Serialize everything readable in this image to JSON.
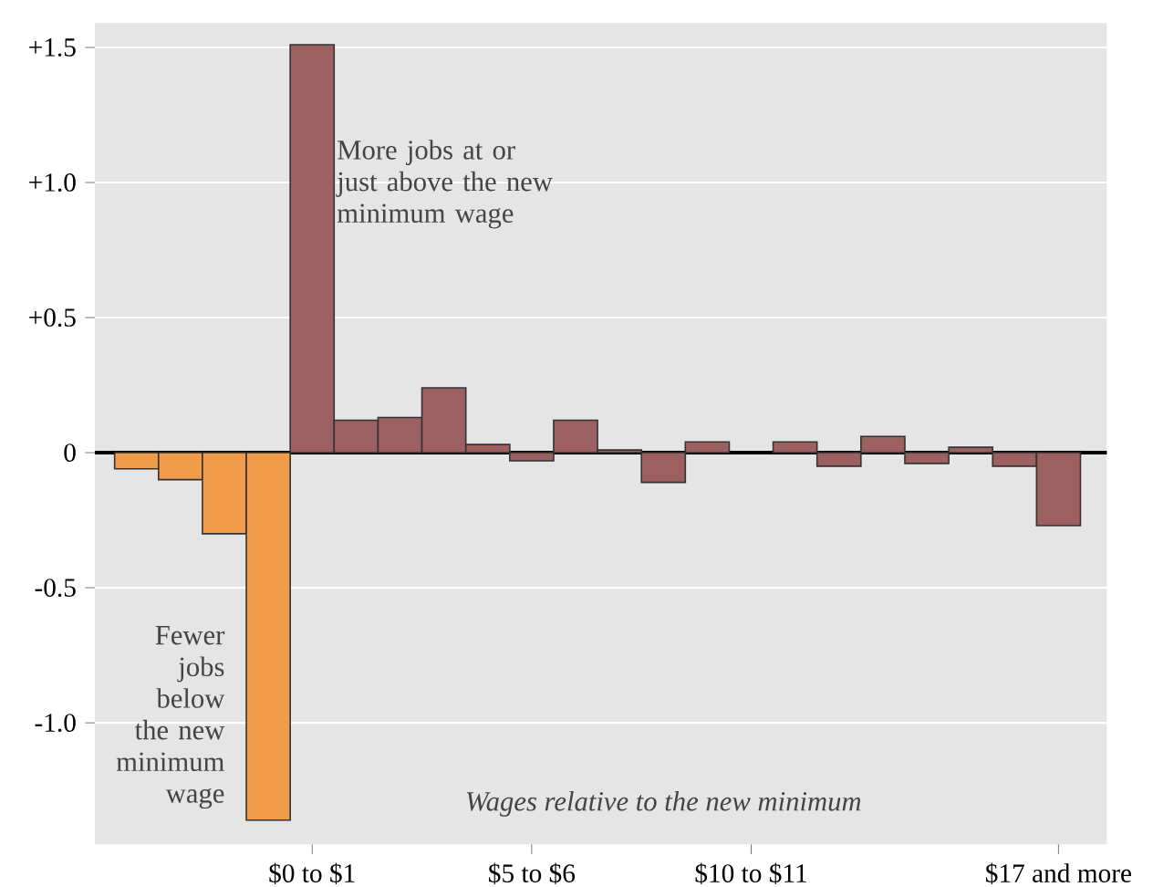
{
  "chart_data": {
    "type": "bar",
    "xlabel": "Wages relative to the new minimum",
    "categories": [
      null,
      null,
      null,
      null,
      "$0 to $1",
      null,
      null,
      null,
      null,
      "$5 to $6",
      null,
      null,
      null,
      null,
      "$10 to $11",
      null,
      null,
      null,
      null,
      null,
      null,
      "$17 and more"
    ],
    "values": [
      -0.06,
      -0.1,
      -0.3,
      -1.36,
      1.51,
      0.12,
      0.13,
      0.24,
      0.03,
      -0.03,
      0.12,
      0.01,
      -0.11,
      0.04,
      null,
      0.04,
      -0.05,
      0.06,
      -0.04,
      0.02,
      -0.05,
      -0.27
    ],
    "colors": [
      "#f09c4a",
      "#f09c4a",
      "#f09c4a",
      "#f09c4a",
      "#9c6060",
      "#9c6060",
      "#9c6060",
      "#9c6060",
      "#9c6060",
      "#9c6060",
      "#9c6060",
      "#9c6060",
      "#9c6060",
      "#9c6060",
      "#9c6060",
      "#9c6060",
      "#9c6060",
      "#9c6060",
      "#9c6060",
      "#9c6060",
      "#9c6060",
      "#9c6060"
    ],
    "ylim": [
      -1.45,
      1.59
    ],
    "yticks": [
      {
        "value": 1.5,
        "label": "+1.5"
      },
      {
        "value": 1.0,
        "label": "+1.0"
      },
      {
        "value": 0.5,
        "label": "+0.5"
      },
      0,
      {
        "value": -0.5,
        "label": "-0.5"
      },
      {
        "value": -1.0,
        "label": "-1.0"
      }
    ],
    "grid": "y",
    "ref_lines": [
      {
        "axis": "y",
        "value": 0,
        "color": "#000000"
      }
    ],
    "annotations": [
      "More jobs at or just above the new minimum wage",
      "Fewer jobs below the new minimum wage"
    ]
  }
}
